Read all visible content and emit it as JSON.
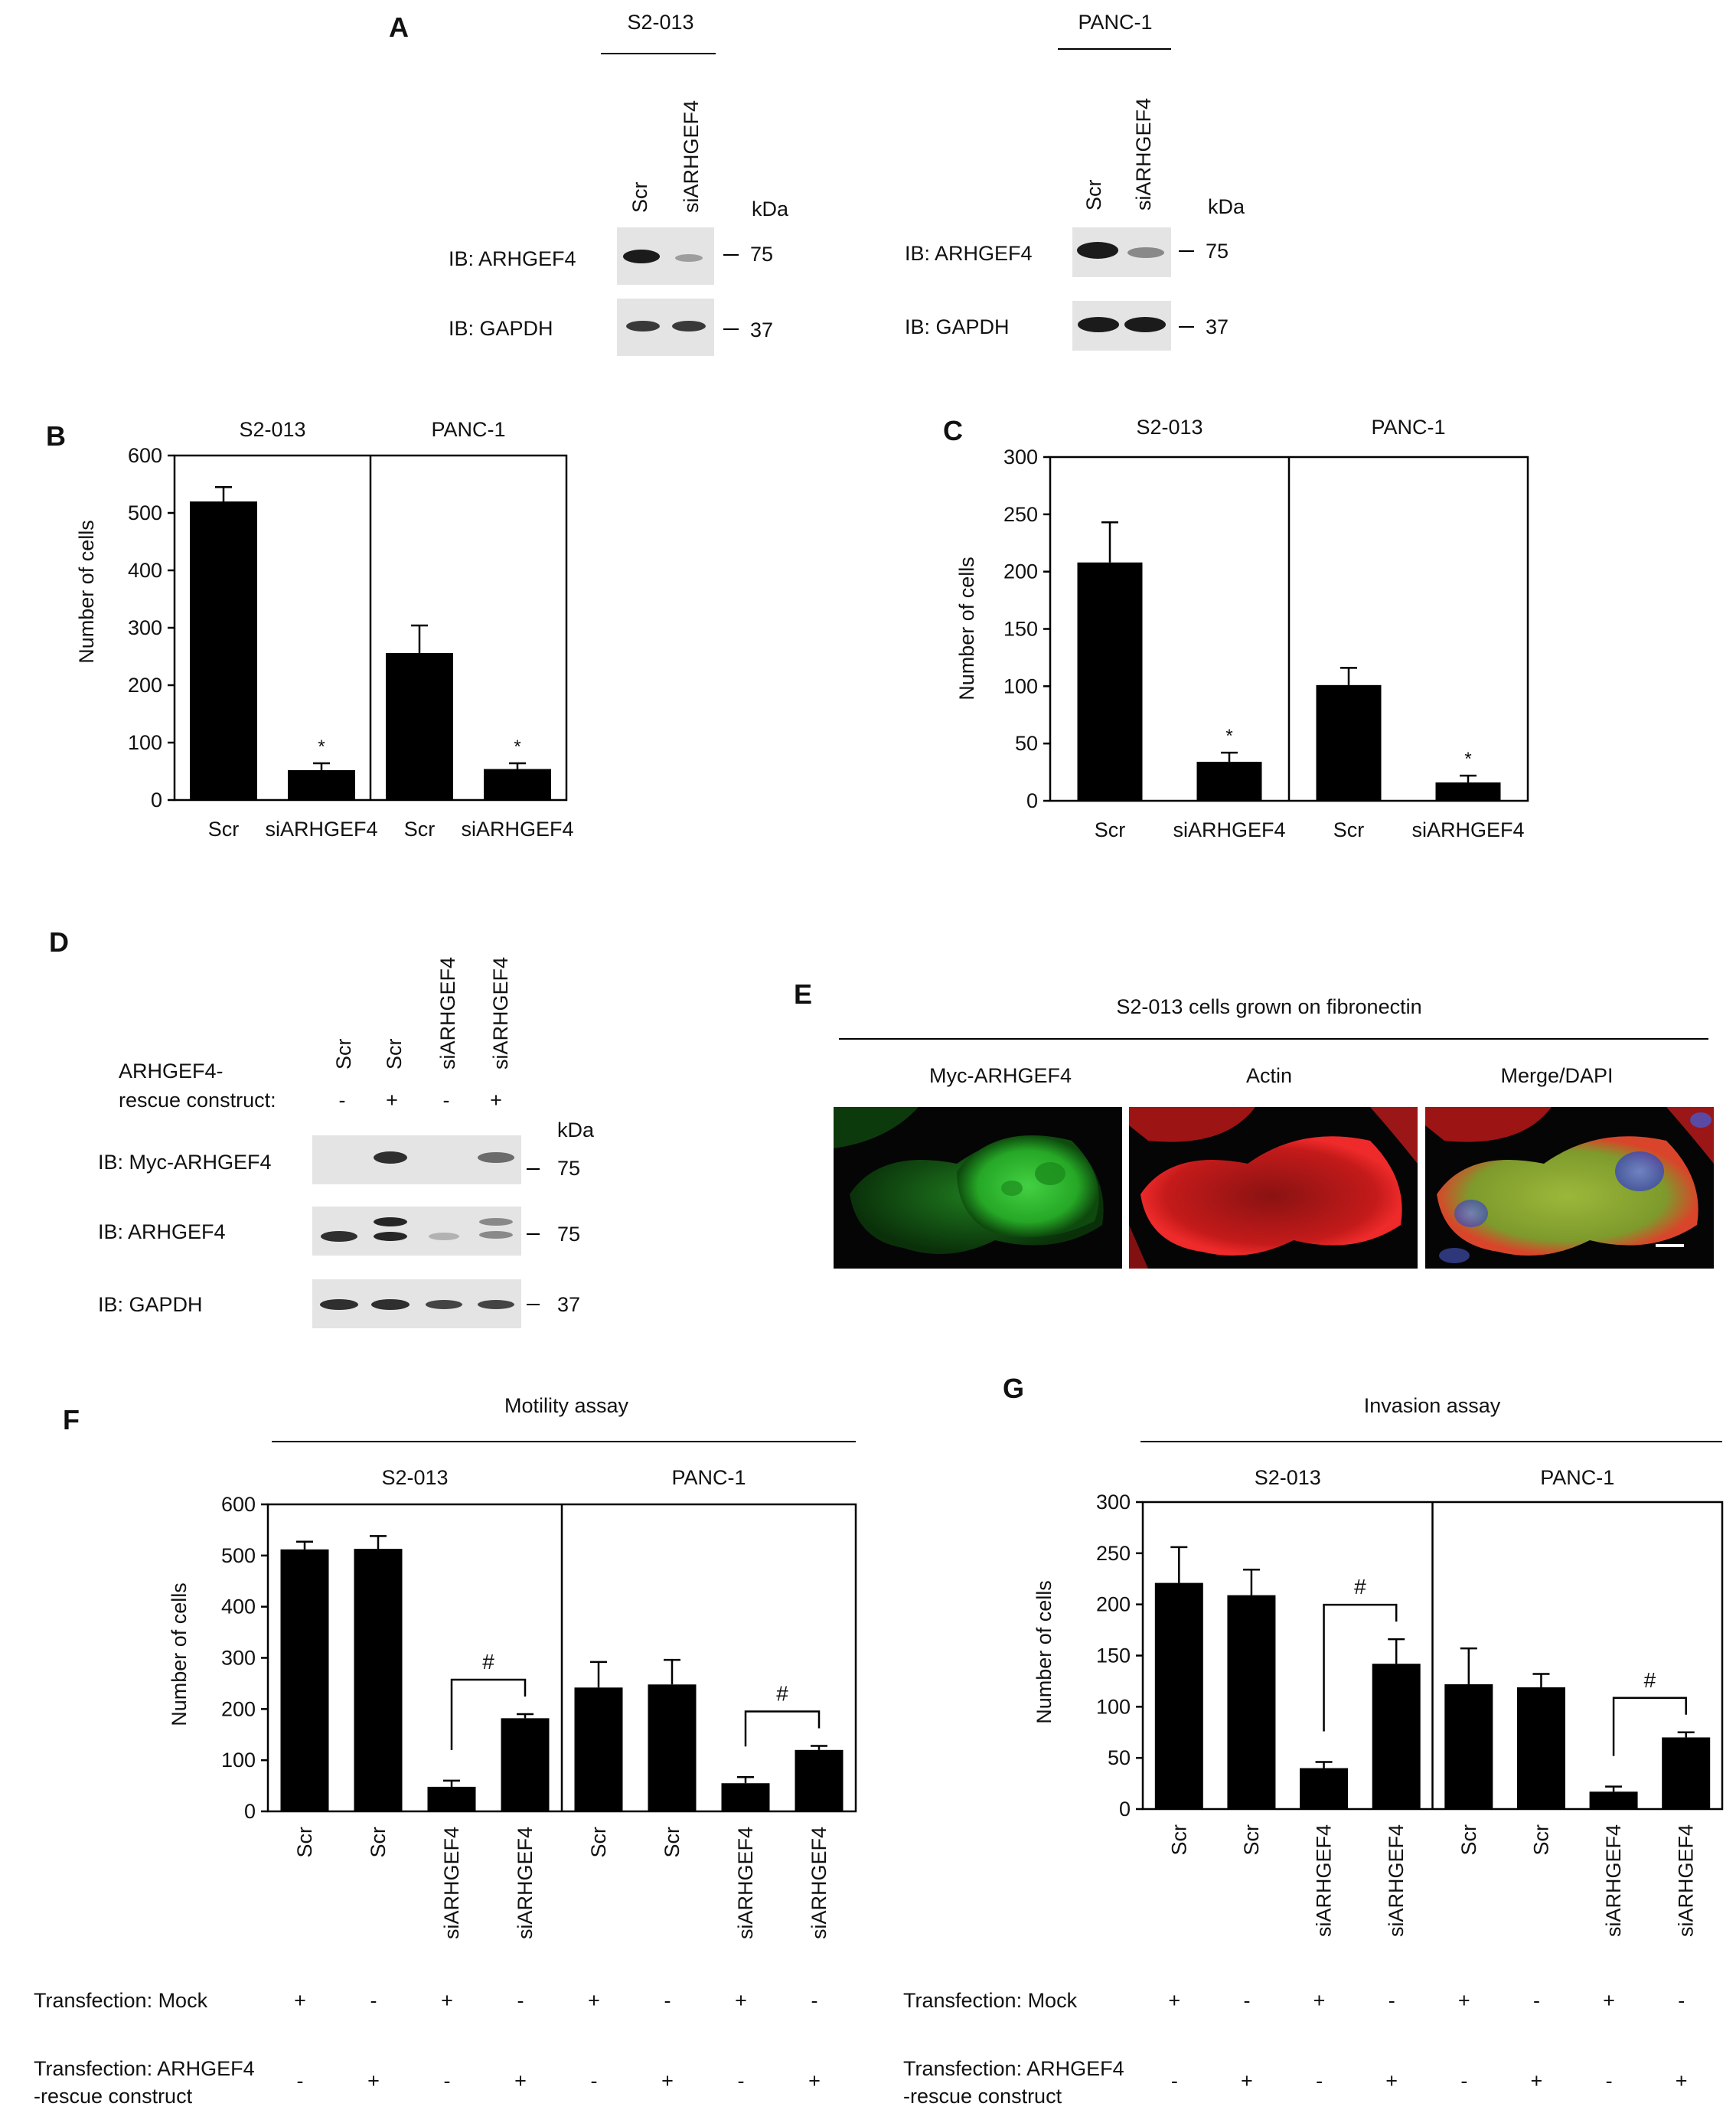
{
  "panels": {
    "A": {
      "letter": "A",
      "kda": "kDa",
      "blots": [
        {
          "cell": "S2-013",
          "lanes": [
            "Scr",
            "siARHGEF4"
          ],
          "rows": [
            {
              "label": "IB: ARHGEF4",
              "marker": "75",
              "intensity": [
                1.0,
                0.35
              ]
            },
            {
              "label": "IB: GAPDH",
              "marker": "37",
              "intensity": [
                0.85,
                0.85
              ]
            }
          ]
        },
        {
          "cell": "PANC-1",
          "lanes": [
            "Scr",
            "siARHGEF4"
          ],
          "rows": [
            {
              "label": "IB: ARHGEF4",
              "marker": "75",
              "intensity": [
                1.0,
                0.45
              ]
            },
            {
              "label": "IB: GAPDH",
              "marker": "37",
              "intensity": [
                1.0,
                1.0
              ]
            }
          ]
        }
      ]
    },
    "D": {
      "letter": "D",
      "lanes": [
        "Scr",
        "Scr",
        "siARHGEF4",
        "siARHGEF4"
      ],
      "construct_label_1": "ARHGEF4-",
      "construct_label_2": "rescue construct:",
      "construct_signs": [
        "-",
        "+",
        "-",
        "+"
      ],
      "kda": "kDa",
      "rows": [
        {
          "label": "IB: Myc-ARHGEF4",
          "marker": "75",
          "intensity": [
            0,
            0.9,
            0,
            0.6
          ]
        },
        {
          "label": "IB: ARHGEF4",
          "marker": "75",
          "intensity": [
            0.9,
            0.95,
            0.25,
            0.45
          ]
        },
        {
          "label": "IB: GAPDH",
          "marker": "37",
          "intensity": [
            0.9,
            0.9,
            0.8,
            0.8
          ]
        }
      ]
    },
    "E": {
      "letter": "E",
      "title": "S2-013 cells  grown on fibronectin",
      "columns": [
        "Myc-ARHGEF4",
        "Actin",
        "Merge/DAPI"
      ],
      "colors": {
        "green": "#2fc02f",
        "red": "#d01d1d",
        "blue": "#5060d8",
        "bg": "#050505"
      }
    }
  },
  "chart_data": [
    {
      "panel": "B",
      "type": "bar",
      "ylabel": "Number of cells",
      "ylim": [
        0,
        600
      ],
      "yticks": [
        0,
        100,
        200,
        300,
        400,
        500,
        600
      ],
      "groups": [
        "S2-013",
        "PANC-1"
      ],
      "categories": [
        "Scr",
        "siARHGEF4",
        "Scr",
        "siARHGEF4"
      ],
      "values": [
        520,
        52,
        256,
        54
      ],
      "errors": [
        25,
        12,
        48,
        10
      ],
      "markers": [
        "",
        "*",
        "",
        "*"
      ]
    },
    {
      "panel": "C",
      "type": "bar",
      "ylabel": "Number of cells",
      "ylim": [
        0,
        300
      ],
      "yticks": [
        0,
        50,
        100,
        150,
        200,
        250,
        300
      ],
      "groups": [
        "S2-013",
        "PANC-1"
      ],
      "categories": [
        "Scr",
        "siARHGEF4",
        "Scr",
        "siARHGEF4"
      ],
      "values": [
        208,
        34,
        101,
        16
      ],
      "errors": [
        35,
        8,
        15,
        6
      ],
      "markers": [
        "",
        "*",
        "",
        "*"
      ]
    },
    {
      "panel": "F",
      "type": "bar",
      "title": "Motility assay",
      "ylabel": "Number of cells",
      "ylim": [
        0,
        600
      ],
      "yticks": [
        0,
        100,
        200,
        300,
        400,
        500,
        600
      ],
      "groups": [
        "S2-013",
        "PANC-1"
      ],
      "categories": [
        "Scr",
        "Scr",
        "siARHGEF4",
        "siARHGEF4",
        "Scr",
        "Scr",
        "siARHGEF4",
        "siARHGEF4"
      ],
      "values": [
        512,
        513,
        48,
        182,
        242,
        248,
        55,
        120
      ],
      "errors": [
        15,
        25,
        12,
        8,
        50,
        48,
        12,
        8
      ],
      "significance": [
        {
          "from": 2,
          "to": 3,
          "symbol": "#"
        },
        {
          "from": 6,
          "to": 7,
          "symbol": "#"
        }
      ],
      "mock_label": "Transfection: Mock",
      "mock": [
        "+",
        "-",
        "+",
        "-",
        "+",
        "-",
        "+",
        "-"
      ],
      "rescue_label_1": "Transfection: ARHGEF4",
      "rescue_label_2": "-rescue construct",
      "rescue": [
        "-",
        "+",
        "-",
        "+",
        "-",
        "+",
        "-",
        "+"
      ]
    },
    {
      "panel": "G",
      "type": "bar",
      "title": "Invasion assay",
      "ylabel": "Number of cells",
      "ylim": [
        0,
        300
      ],
      "yticks": [
        0,
        50,
        100,
        150,
        200,
        250,
        300
      ],
      "groups": [
        "S2-013",
        "PANC-1"
      ],
      "categories": [
        "Scr",
        "Scr",
        "siARHGEF4",
        "siARHGEF4",
        "Scr",
        "Scr",
        "siARHGEF4",
        "siARHGEF4"
      ],
      "values": [
        221,
        209,
        40,
        142,
        122,
        119,
        17,
        70
      ],
      "errors": [
        35,
        25,
        6,
        24,
        35,
        13,
        5,
        5
      ],
      "significance": [
        {
          "from": 2,
          "to": 3,
          "symbol": "#"
        },
        {
          "from": 6,
          "to": 7,
          "symbol": "#"
        }
      ],
      "mock_label": "Transfection: Mock",
      "mock": [
        "+",
        "-",
        "+",
        "-",
        "+",
        "-",
        "+",
        "-"
      ],
      "rescue_label_1": "Transfection: ARHGEF4",
      "rescue_label_2": "-rescue construct",
      "rescue": [
        "-",
        "+",
        "-",
        "+",
        "-",
        "+",
        "-",
        "+"
      ]
    }
  ]
}
